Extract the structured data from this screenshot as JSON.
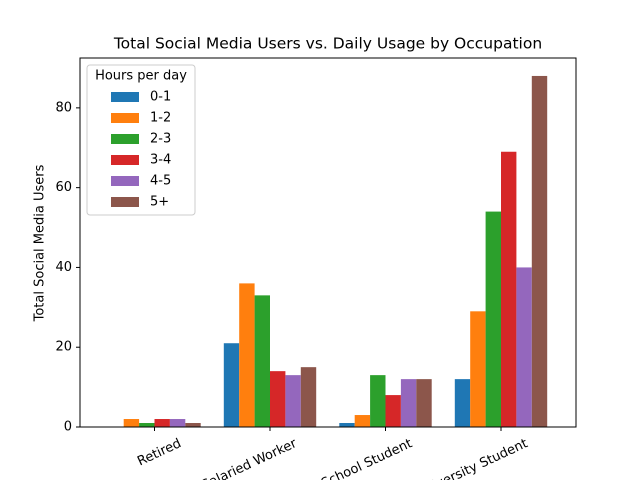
{
  "chart_data": {
    "type": "bar",
    "title": "Total Social Media Users vs. Daily Usage by Occupation",
    "y_label": "Total Social Media Users",
    "categories": [
      "Retired",
      "Salaried Worker",
      "School Student",
      "University Student"
    ],
    "legend_title": "Hours per day",
    "legend_position": "upper left",
    "series": [
      {
        "name": "0-1",
        "color": "#1f77b4",
        "values": [
          0,
          21,
          1,
          12
        ]
      },
      {
        "name": "1-2",
        "color": "#ff7f0e",
        "values": [
          2,
          36,
          3,
          29
        ]
      },
      {
        "name": "2-3",
        "color": "#2ca02c",
        "values": [
          1,
          33,
          13,
          54
        ]
      },
      {
        "name": "3-4",
        "color": "#d62728",
        "values": [
          2,
          14,
          8,
          69
        ]
      },
      {
        "name": "4-5",
        "color": "#9467bd",
        "values": [
          2,
          13,
          12,
          40
        ]
      },
      {
        "name": "5+",
        "color": "#8c564b",
        "values": [
          1,
          15,
          12,
          88
        ]
      }
    ],
    "ylim": [
      0,
      92.5
    ],
    "yticks": [
      0,
      20,
      40,
      60,
      80
    ],
    "grid": false
  }
}
